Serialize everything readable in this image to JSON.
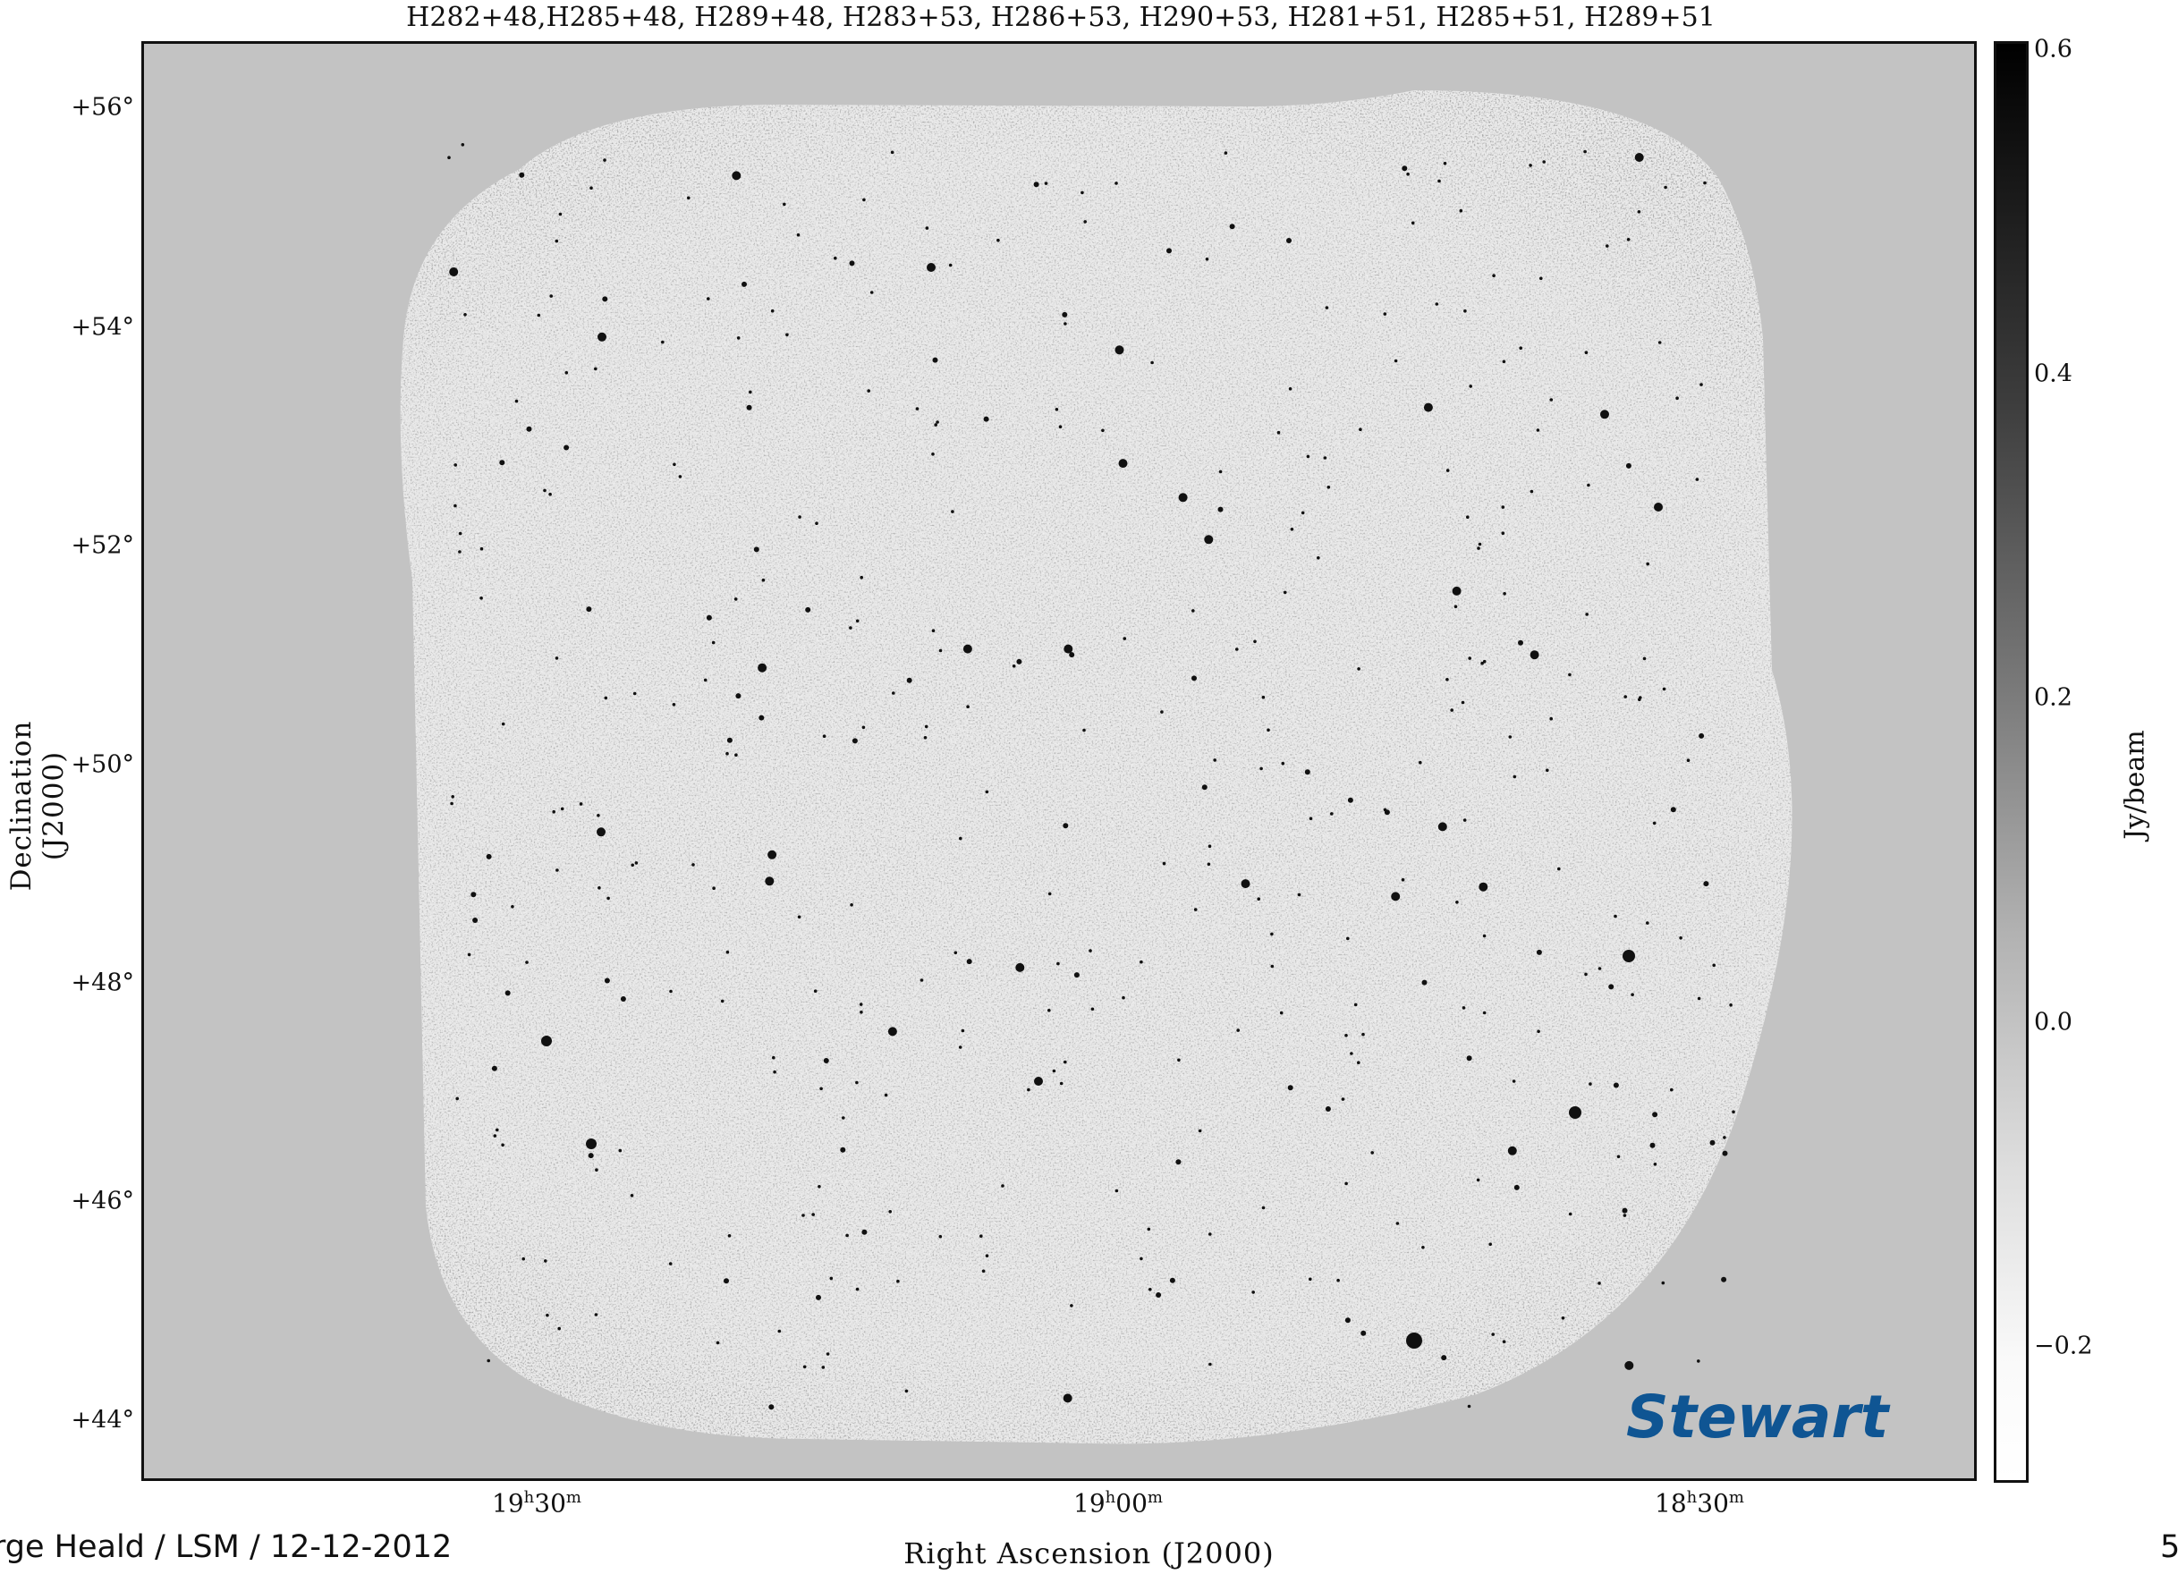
{
  "plot": {
    "title": "H282+48,H285+48,  H289+48,  H283+53,  H286+53,  H290+53,  H281+51,  H285+51,  H289+51",
    "y_label": "Declination (J2000)",
    "x_label": "Right Ascension (J2000)",
    "y_ticks": [
      "+56°",
      "+54°",
      "+52°",
      "+50°",
      "+48°",
      "+46°",
      "+44°"
    ],
    "x_ticks": [
      {
        "h": "19",
        "m": "30"
      },
      {
        "h": "19",
        "m": "00"
      },
      {
        "h": "18",
        "m": "30"
      }
    ],
    "colorbar": {
      "label": "Jy/beam",
      "ticks": [
        "0.6",
        "0.4",
        "0.2",
        "0.0",
        "−0.2"
      ],
      "range": [
        -0.28,
        0.6
      ]
    },
    "colors": {
      "background": "#c3c3c3",
      "watermark": "#0f5593"
    }
  },
  "watermark": "Stewart",
  "footer": {
    "left": "rge Heald / LSM / 12-12-2012",
    "right": "5"
  }
}
